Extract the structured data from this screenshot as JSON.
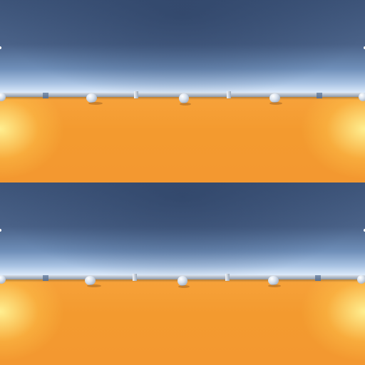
{
  "scene": {
    "views": [
      "top-eye",
      "bottom-eye"
    ],
    "colors": {
      "sky_top": "#3d5479",
      "horizon": "#ffffff",
      "ground": "#f39a2f",
      "sun_glow": "#fff4a0",
      "object": "#d9e2ee"
    }
  }
}
